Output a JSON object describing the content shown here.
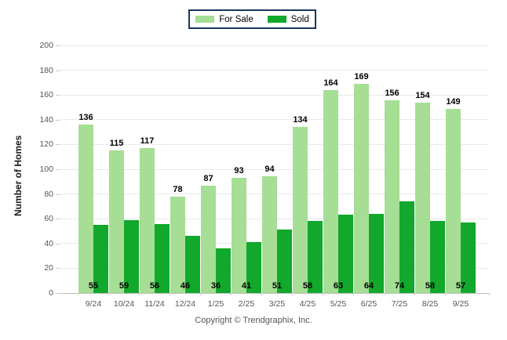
{
  "legend": {
    "items": [
      {
        "label": "For Sale",
        "color": "#A5DE94"
      },
      {
        "label": "Sold",
        "color": "#11A82B"
      }
    ],
    "border_color": "#17365d"
  },
  "chart_data": {
    "type": "bar",
    "categories": [
      "9/24",
      "10/24",
      "11/24",
      "12/24",
      "1/25",
      "2/25",
      "3/25",
      "4/25",
      "5/25",
      "6/25",
      "7/25",
      "8/25",
      "9/25"
    ],
    "series": [
      {
        "name": "For Sale",
        "color": "#A5DE94",
        "values": [
          136,
          115,
          117,
          78,
          87,
          93,
          94,
          134,
          164,
          169,
          156,
          154,
          149
        ]
      },
      {
        "name": "Sold",
        "color": "#11A82B",
        "values": [
          55,
          59,
          56,
          46,
          36,
          41,
          51,
          58,
          63,
          64,
          74,
          58,
          57
        ]
      }
    ],
    "title": "",
    "xlabel": "",
    "ylabel": "Number of Homes",
    "ylim": [
      0,
      200
    ],
    "yticks": [
      0,
      20,
      40,
      60,
      80,
      100,
      120,
      140,
      160,
      180,
      200
    ],
    "grid": true,
    "legend_position": "top-center",
    "value_labels": true
  },
  "footer": {
    "copyright": "Copyright © Trendgraphix, Inc."
  }
}
